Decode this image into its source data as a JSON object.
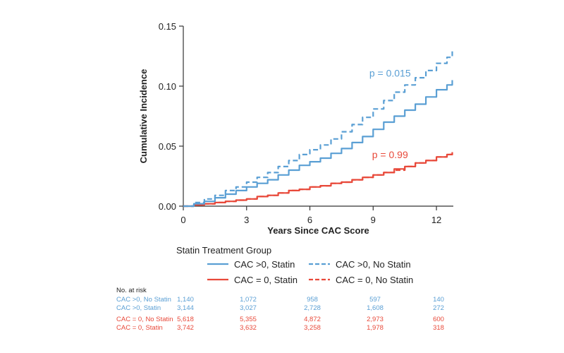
{
  "chart_data": {
    "type": "line",
    "xlabel": "Years Since CAC Score",
    "ylabel": "Cumulative Incidence",
    "xlim": [
      0,
      12.8
    ],
    "ylim": [
      0,
      0.15
    ],
    "x_ticks": [
      0,
      3,
      6,
      9,
      12
    ],
    "x_tick_labels": [
      "0",
      "3",
      "6",
      "9",
      "12"
    ],
    "y_ticks": [
      0,
      0.05,
      0.1,
      0.15
    ],
    "y_tick_labels": [
      "0.00",
      "0.05",
      "0.10",
      "0.15"
    ],
    "grid": false,
    "legend_title": "Statin Treatment Group",
    "legend_placement": "bottom",
    "series": [
      {
        "name": "CAC >0, Statin",
        "color": "#5a9fd4",
        "dash": "solid",
        "points": [
          [
            0,
            0
          ],
          [
            0.5,
            0.002
          ],
          [
            1,
            0.004
          ],
          [
            1.5,
            0.007
          ],
          [
            2,
            0.01
          ],
          [
            2.5,
            0.013
          ],
          [
            3,
            0.016
          ],
          [
            3.5,
            0.019
          ],
          [
            4,
            0.022
          ],
          [
            4.5,
            0.026
          ],
          [
            5,
            0.03
          ],
          [
            5.5,
            0.034
          ],
          [
            6,
            0.037
          ],
          [
            6.5,
            0.04
          ],
          [
            7,
            0.044
          ],
          [
            7.5,
            0.048
          ],
          [
            8,
            0.053
          ],
          [
            8.5,
            0.058
          ],
          [
            9,
            0.064
          ],
          [
            9.5,
            0.07
          ],
          [
            10,
            0.075
          ],
          [
            10.5,
            0.08
          ],
          [
            11,
            0.085
          ],
          [
            11.5,
            0.091
          ],
          [
            12,
            0.097
          ],
          [
            12.5,
            0.101
          ],
          [
            12.75,
            0.105
          ]
        ]
      },
      {
        "name": "CAC >0, No Statin",
        "color": "#5a9fd4",
        "dash": "dashed",
        "points": [
          [
            0,
            0
          ],
          [
            0.5,
            0.003
          ],
          [
            1,
            0.006
          ],
          [
            1.5,
            0.009
          ],
          [
            2,
            0.013
          ],
          [
            2.5,
            0.016
          ],
          [
            3,
            0.02
          ],
          [
            3.5,
            0.024
          ],
          [
            4,
            0.028
          ],
          [
            4.5,
            0.033
          ],
          [
            5,
            0.038
          ],
          [
            5.5,
            0.043
          ],
          [
            6,
            0.047
          ],
          [
            6.5,
            0.051
          ],
          [
            7,
            0.056
          ],
          [
            7.5,
            0.062
          ],
          [
            8,
            0.068
          ],
          [
            8.5,
            0.074
          ],
          [
            9,
            0.081
          ],
          [
            9.5,
            0.088
          ],
          [
            10,
            0.095
          ],
          [
            10.5,
            0.101
          ],
          [
            11,
            0.107
          ],
          [
            11.5,
            0.113
          ],
          [
            12,
            0.119
          ],
          [
            12.5,
            0.124
          ],
          [
            12.75,
            0.129
          ]
        ]
      },
      {
        "name": "CAC = 0, Statin",
        "color": "#e8493a",
        "dash": "solid",
        "points": [
          [
            0,
            0
          ],
          [
            0.5,
            0.001
          ],
          [
            1,
            0.002
          ],
          [
            1.5,
            0.003
          ],
          [
            2,
            0.004
          ],
          [
            2.5,
            0.005
          ],
          [
            3,
            0.006
          ],
          [
            3.5,
            0.008
          ],
          [
            4,
            0.009
          ],
          [
            4.5,
            0.011
          ],
          [
            5,
            0.013
          ],
          [
            5.5,
            0.014
          ],
          [
            6,
            0.016
          ],
          [
            6.5,
            0.017
          ],
          [
            7,
            0.019
          ],
          [
            7.5,
            0.02
          ],
          [
            8,
            0.022
          ],
          [
            8.5,
            0.024
          ],
          [
            9,
            0.026
          ],
          [
            9.5,
            0.028
          ],
          [
            10,
            0.031
          ],
          [
            10.5,
            0.033
          ],
          [
            11,
            0.036
          ],
          [
            11.5,
            0.038
          ],
          [
            12,
            0.041
          ],
          [
            12.5,
            0.043
          ],
          [
            12.75,
            0.045
          ]
        ]
      },
      {
        "name": "CAC = 0, No Statin",
        "color": "#e8493a",
        "dash": "dashed",
        "points": [
          [
            0,
            0
          ],
          [
            0.5,
            0.001
          ],
          [
            1,
            0.002
          ],
          [
            1.5,
            0.003
          ],
          [
            2,
            0.004
          ],
          [
            2.5,
            0.005
          ],
          [
            3,
            0.006
          ],
          [
            3.5,
            0.008
          ],
          [
            4,
            0.009
          ],
          [
            4.5,
            0.011
          ],
          [
            5,
            0.013
          ],
          [
            5.5,
            0.014
          ],
          [
            6,
            0.016
          ],
          [
            6.5,
            0.017
          ],
          [
            7,
            0.019
          ],
          [
            7.5,
            0.02
          ],
          [
            8,
            0.022
          ],
          [
            8.5,
            0.024
          ],
          [
            9,
            0.026
          ],
          [
            9.5,
            0.028
          ],
          [
            10,
            0.03
          ],
          [
            10.5,
            0.033
          ],
          [
            11,
            0.036
          ],
          [
            11.5,
            0.038
          ],
          [
            12,
            0.041
          ],
          [
            12.5,
            0.043
          ],
          [
            12.75,
            0.044
          ]
        ]
      }
    ],
    "annotations": [
      {
        "text": "p = 0.015",
        "x": 9.8,
        "y": 0.108,
        "color": "#5a9fd4"
      },
      {
        "text": "p = 0.99",
        "x": 9.8,
        "y": 0.04,
        "color": "#e8493a"
      }
    ],
    "risk_table": {
      "title": "No.  at risk",
      "times": [
        0,
        3,
        6,
        9,
        12
      ],
      "rows": [
        {
          "label": "CAC >0, No Statin",
          "color": "#5a9fd4",
          "values": [
            "1,140",
            "1,072",
            "958",
            "597",
            "140"
          ]
        },
        {
          "label": "CAC >0, Statin",
          "color": "#5a9fd4",
          "values": [
            "3,144",
            "3,027",
            "2,728",
            "1,608",
            "272"
          ]
        },
        {
          "label": "CAC = 0, No Statin",
          "color": "#e8493a",
          "values": [
            "5,618",
            "5,355",
            "4,872",
            "2,973",
            "600"
          ]
        },
        {
          "label": "CAC = 0, Statin",
          "color": "#e8493a",
          "values": [
            "3,742",
            "3,632",
            "3,258",
            "1,978",
            "318"
          ]
        }
      ]
    }
  }
}
